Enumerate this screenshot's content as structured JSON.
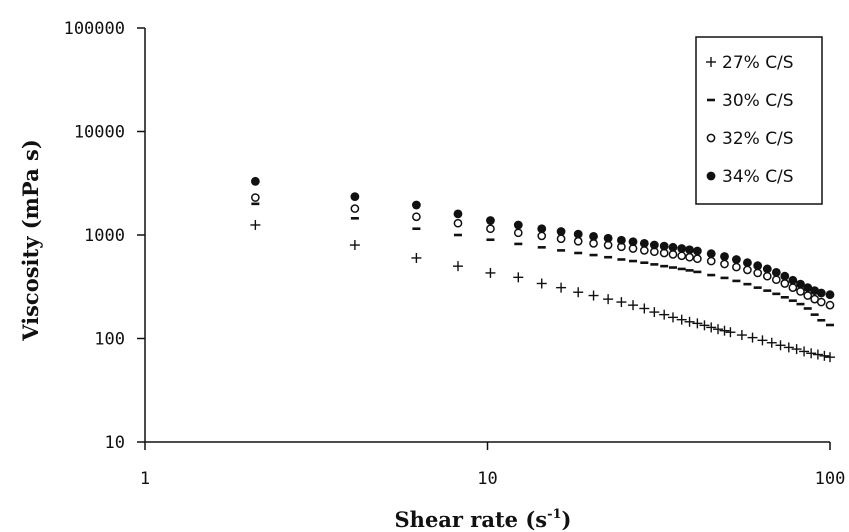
{
  "chart_data": {
    "type": "scatter",
    "xlabel": "Shear rate (s",
    "xlabel_sup": "-1",
    "xlabel_end": ")",
    "ylabel": "Viscosity (mPa s)",
    "x_scale": "log",
    "y_scale": "log",
    "xlim": [
      1,
      100
    ],
    "ylim": [
      10,
      100000
    ],
    "x_ticks": [
      "1",
      "10",
      "100"
    ],
    "y_ticks": [
      "10",
      "100",
      "1000",
      "10000",
      "100000"
    ],
    "grid": false,
    "legend_position": "top-right",
    "series": [
      {
        "name": "27% C/S",
        "marker": "plus",
        "points": [
          [
            2.1,
            1250
          ],
          [
            4.1,
            800
          ],
          [
            6.2,
            600
          ],
          [
            8.2,
            500
          ],
          [
            10.2,
            430
          ],
          [
            12.3,
            390
          ],
          [
            14.4,
            340
          ],
          [
            16.4,
            310
          ],
          [
            18.4,
            280
          ],
          [
            20.4,
            260
          ],
          [
            22.5,
            240
          ],
          [
            24.6,
            225
          ],
          [
            26.6,
            210
          ],
          [
            28.7,
            195
          ],
          [
            30.7,
            180
          ],
          [
            32.8,
            170
          ],
          [
            34.8,
            160
          ],
          [
            36.9,
            152
          ],
          [
            38.9,
            145
          ],
          [
            41,
            140
          ],
          [
            43,
            134
          ],
          [
            45,
            128
          ],
          [
            47.1,
            123
          ],
          [
            49.2,
            119
          ],
          [
            51.2,
            115
          ],
          [
            55.3,
            108
          ],
          [
            59.4,
            102
          ],
          [
            63.5,
            96
          ],
          [
            67.6,
            91
          ],
          [
            71.7,
            86
          ],
          [
            75.8,
            82
          ],
          [
            79.9,
            79
          ],
          [
            84,
            75
          ],
          [
            88.1,
            72
          ],
          [
            92.2,
            70
          ],
          [
            96.3,
            68
          ],
          [
            100,
            66
          ]
        ]
      },
      {
        "name": "30% C/S",
        "marker": "dash",
        "points": [
          [
            2.1,
            2000
          ],
          [
            4.1,
            1450
          ],
          [
            6.2,
            1150
          ],
          [
            8.2,
            1000
          ],
          [
            10.2,
            900
          ],
          [
            12.3,
            820
          ],
          [
            14.4,
            760
          ],
          [
            16.4,
            710
          ],
          [
            18.4,
            670
          ],
          [
            20.4,
            640
          ],
          [
            22.5,
            610
          ],
          [
            24.6,
            580
          ],
          [
            26.6,
            560
          ],
          [
            28.7,
            540
          ],
          [
            30.7,
            520
          ],
          [
            32.8,
            500
          ],
          [
            34.8,
            485
          ],
          [
            36.9,
            470
          ],
          [
            38.9,
            455
          ],
          [
            41,
            440
          ],
          [
            45,
            410
          ],
          [
            49.2,
            385
          ],
          [
            53.3,
            360
          ],
          [
            57.4,
            335
          ],
          [
            61.5,
            310
          ],
          [
            65.6,
            290
          ],
          [
            69.7,
            270
          ],
          [
            73.8,
            250
          ],
          [
            77.9,
            232
          ],
          [
            82,
            215
          ],
          [
            86.1,
            195
          ],
          [
            90.2,
            170
          ],
          [
            94.3,
            150
          ],
          [
            100,
            135
          ]
        ]
      },
      {
        "name": "32% C/S",
        "marker": "open-circle",
        "points": [
          [
            2.1,
            2300
          ],
          [
            4.1,
            1800
          ],
          [
            6.2,
            1500
          ],
          [
            8.2,
            1300
          ],
          [
            10.2,
            1150
          ],
          [
            12.3,
            1050
          ],
          [
            14.4,
            980
          ],
          [
            16.4,
            920
          ],
          [
            18.4,
            870
          ],
          [
            20.4,
            830
          ],
          [
            22.5,
            800
          ],
          [
            24.6,
            770
          ],
          [
            26.6,
            740
          ],
          [
            28.7,
            710
          ],
          [
            30.7,
            690
          ],
          [
            32.8,
            670
          ],
          [
            34.8,
            650
          ],
          [
            36.9,
            630
          ],
          [
            38.9,
            610
          ],
          [
            41,
            590
          ],
          [
            45,
            560
          ],
          [
            49.2,
            525
          ],
          [
            53.3,
            490
          ],
          [
            57.4,
            460
          ],
          [
            61.5,
            430
          ],
          [
            65.6,
            400
          ],
          [
            69.7,
            370
          ],
          [
            73.8,
            340
          ],
          [
            77.9,
            310
          ],
          [
            82,
            285
          ],
          [
            86.1,
            260
          ],
          [
            90.2,
            240
          ],
          [
            94.3,
            225
          ],
          [
            100,
            210
          ]
        ]
      },
      {
        "name": "34% C/S",
        "marker": "filled-circle",
        "points": [
          [
            2.1,
            3300
          ],
          [
            4.1,
            2350
          ],
          [
            6.2,
            1950
          ],
          [
            8.2,
            1600
          ],
          [
            10.2,
            1380
          ],
          [
            12.3,
            1250
          ],
          [
            14.4,
            1150
          ],
          [
            16.4,
            1080
          ],
          [
            18.4,
            1020
          ],
          [
            20.4,
            970
          ],
          [
            22.5,
            930
          ],
          [
            24.6,
            890
          ],
          [
            26.6,
            860
          ],
          [
            28.7,
            830
          ],
          [
            30.7,
            800
          ],
          [
            32.8,
            780
          ],
          [
            34.8,
            760
          ],
          [
            36.9,
            740
          ],
          [
            38.9,
            720
          ],
          [
            41,
            700
          ],
          [
            45,
            660
          ],
          [
            49.2,
            620
          ],
          [
            53.3,
            580
          ],
          [
            57.4,
            540
          ],
          [
            61.5,
            505
          ],
          [
            65.6,
            470
          ],
          [
            69.7,
            435
          ],
          [
            73.8,
            400
          ],
          [
            77.9,
            365
          ],
          [
            82,
            335
          ],
          [
            86.1,
            310
          ],
          [
            90.2,
            290
          ],
          [
            94.3,
            275
          ],
          [
            100,
            265
          ]
        ]
      }
    ]
  },
  "colors": {
    "axis": "#111111",
    "marker": "#111111",
    "background": "#ffffff"
  }
}
